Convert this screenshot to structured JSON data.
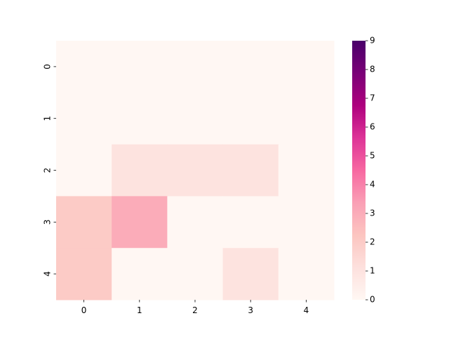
{
  "chart_data": {
    "type": "heatmap",
    "title": "",
    "xlabel": "",
    "ylabel": "",
    "x_categories": [
      "0",
      "1",
      "2",
      "3",
      "4"
    ],
    "y_categories": [
      "0",
      "1",
      "2",
      "3",
      "4"
    ],
    "values": [
      [
        0,
        0,
        0,
        0,
        0
      ],
      [
        0,
        0,
        0,
        0,
        0
      ],
      [
        0,
        1,
        1,
        1,
        0
      ],
      [
        2,
        3,
        0,
        0,
        0
      ],
      [
        2,
        0,
        0,
        1,
        0
      ]
    ],
    "colorbar": {
      "range": [
        0,
        9
      ],
      "ticks": [
        "0",
        "1",
        "2",
        "3",
        "4",
        "5",
        "6",
        "7",
        "8",
        "9"
      ],
      "colormap": "RdPu",
      "position": "right"
    },
    "grid": false
  }
}
